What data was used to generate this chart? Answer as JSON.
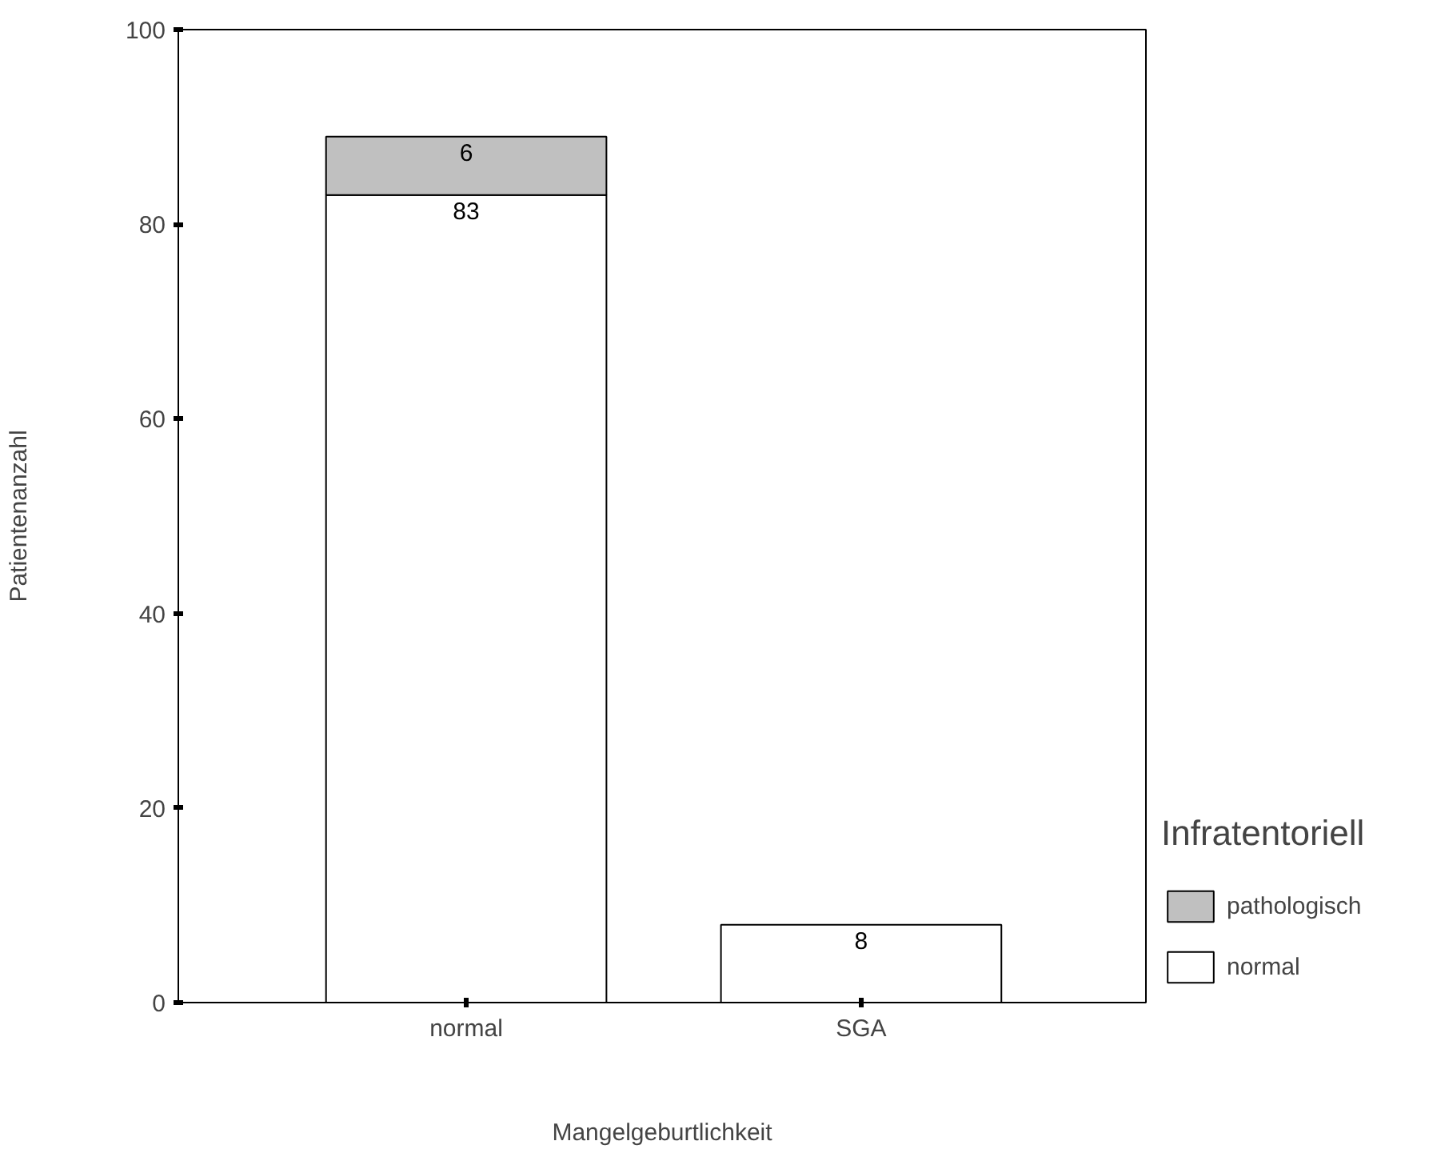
{
  "chart_data": {
    "type": "bar",
    "stacked": true,
    "xlabel": "Mangelgeburtlichkeit",
    "ylabel": "Patientenanzahl",
    "legend_title": "Infratentoriell",
    "categories": [
      "normal",
      "SGA"
    ],
    "series": [
      {
        "name": "normal",
        "color": "#ffffff",
        "values": [
          83,
          8
        ],
        "value_labels": [
          "83",
          "8"
        ]
      },
      {
        "name": "pathologisch",
        "color": "#c0c0c0",
        "values": [
          6,
          null
        ],
        "value_labels": [
          "6",
          null
        ]
      }
    ],
    "ylim": [
      0,
      100
    ],
    "yticks": [
      0,
      20,
      40,
      60,
      80,
      100
    ],
    "grid": false,
    "legend": "right"
  }
}
